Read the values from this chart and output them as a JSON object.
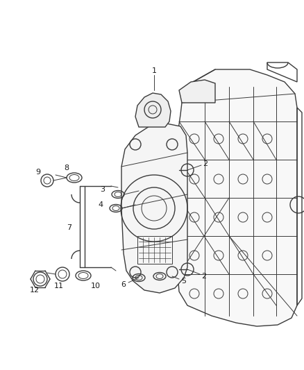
{
  "bg_color": "#ffffff",
  "line_color": "#3a3a3a",
  "label_color": "#1a1a1a",
  "fig_width": 4.38,
  "fig_height": 5.33,
  "dpi": 100
}
